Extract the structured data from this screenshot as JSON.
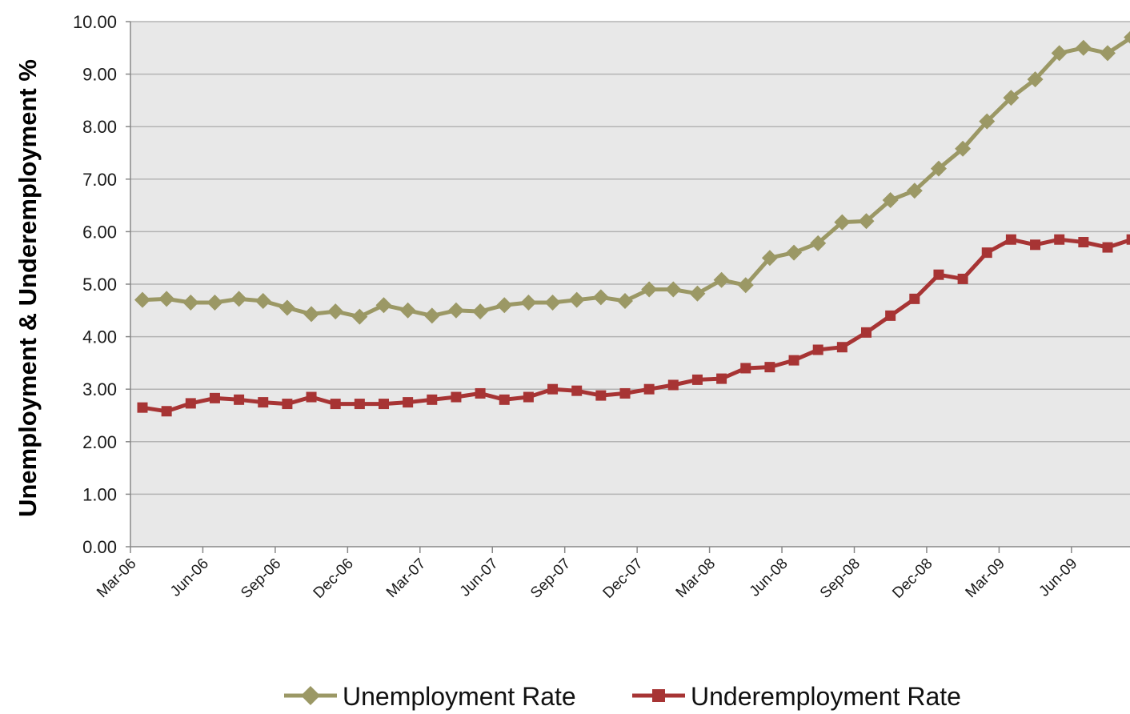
{
  "chart_data": {
    "type": "line",
    "title": "",
    "xlabel": "",
    "ylabel": "Unemployment & Underemployment %",
    "ylim": [
      0,
      10
    ],
    "y_ticks": [
      "0.00",
      "1.00",
      "2.00",
      "3.00",
      "4.00",
      "5.00",
      "6.00",
      "7.00",
      "8.00",
      "9.00",
      "10.00"
    ],
    "x_tick_labels": [
      "Mar-06",
      "Jun-06",
      "Sep-06",
      "Dec-06",
      "Mar-07",
      "Jun-07",
      "Sep-07",
      "Dec-07",
      "Mar-08",
      "Jun-08",
      "Sep-08",
      "Dec-08",
      "Mar-09",
      "Jun-09"
    ],
    "x_start": "Mar-06",
    "x_end": "Oct-09",
    "grid": true,
    "legend_position": "bottom",
    "background_color": "#e8e8e8",
    "gridline_color": "#b3b3b3",
    "series": [
      {
        "name": "Unemployment Rate",
        "color": "#9b9865",
        "marker": "diamond",
        "values": [
          4.7,
          4.72,
          4.65,
          4.65,
          4.72,
          4.68,
          4.55,
          4.43,
          4.48,
          4.38,
          4.6,
          4.5,
          4.4,
          4.5,
          4.48,
          4.6,
          4.65,
          4.65,
          4.7,
          4.75,
          4.68,
          4.9,
          4.9,
          4.82,
          5.08,
          4.98,
          5.5,
          5.6,
          5.78,
          6.18,
          6.2,
          6.6,
          6.78,
          7.2,
          7.58,
          8.1,
          8.55,
          8.9,
          9.4,
          9.5,
          9.4,
          9.7
        ]
      },
      {
        "name": "Underemployment Rate",
        "color": "#a73434",
        "marker": "square",
        "values": [
          2.65,
          2.58,
          2.73,
          2.83,
          2.8,
          2.75,
          2.72,
          2.85,
          2.72,
          2.72,
          2.72,
          2.75,
          2.8,
          2.85,
          2.92,
          2.8,
          2.85,
          3.0,
          2.97,
          2.88,
          2.92,
          3.0,
          3.08,
          3.18,
          3.2,
          3.4,
          3.42,
          3.55,
          3.75,
          3.8,
          4.08,
          4.4,
          4.72,
          5.18,
          5.1,
          5.6,
          5.85,
          5.75,
          5.85,
          5.8,
          5.7,
          5.85
        ]
      }
    ]
  }
}
